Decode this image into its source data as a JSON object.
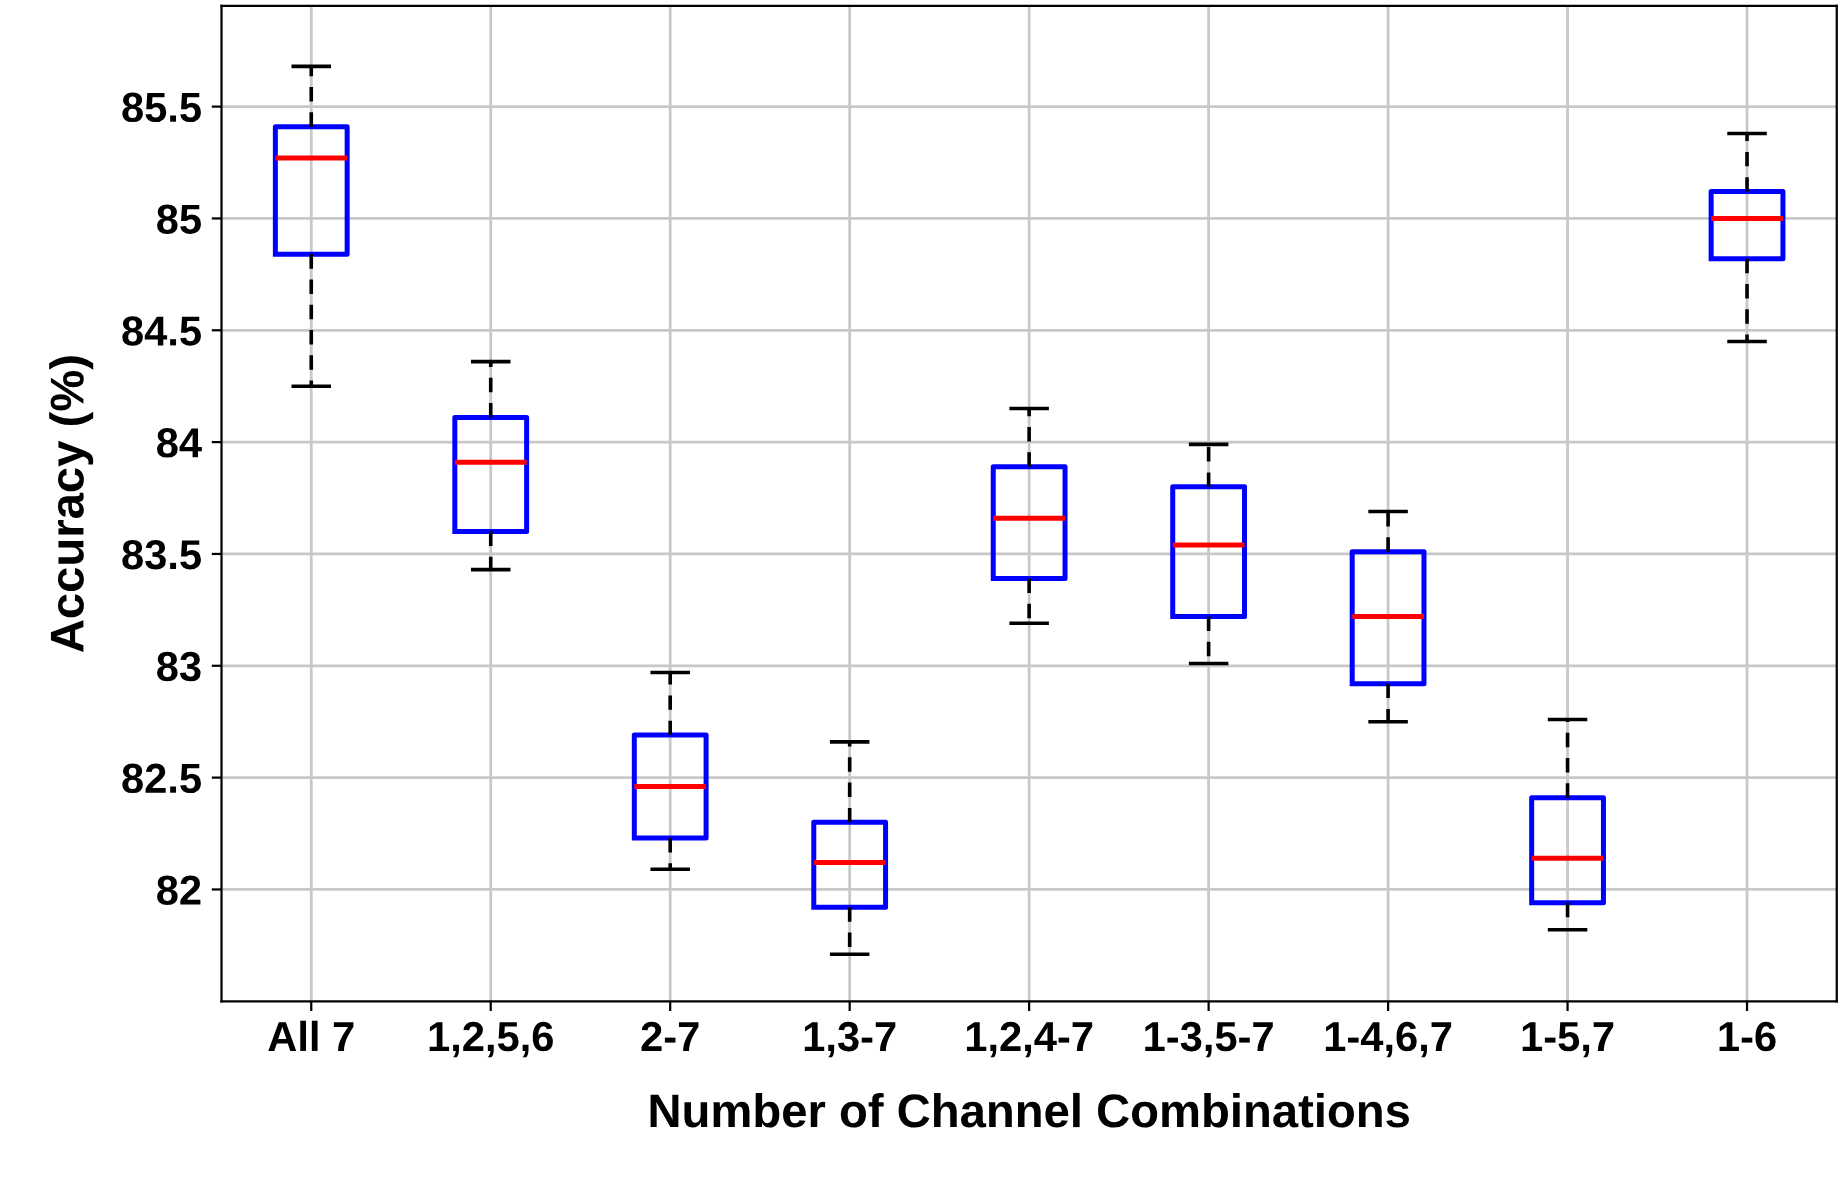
{
  "chart_data": {
    "type": "box",
    "xlabel": "Number of Channel Combinations",
    "ylabel": "Accuracy (%)",
    "categories": [
      "All 7",
      "1,2,5,6",
      "2-7",
      "1,3-7",
      "1,2,4-7",
      "1-3,5-7",
      "1-4,6,7",
      "1-5,7",
      "1-6"
    ],
    "boxes": [
      {
        "low": 84.25,
        "q1": 84.84,
        "median": 85.27,
        "q3": 85.41,
        "high": 85.68
      },
      {
        "low": 83.43,
        "q1": 83.6,
        "median": 83.91,
        "q3": 84.11,
        "high": 84.36
      },
      {
        "low": 82.09,
        "q1": 82.23,
        "median": 82.46,
        "q3": 82.69,
        "high": 82.97
      },
      {
        "low": 81.71,
        "q1": 81.92,
        "median": 82.12,
        "q3": 82.3,
        "high": 82.66
      },
      {
        "low": 83.19,
        "q1": 83.39,
        "median": 83.66,
        "q3": 83.89,
        "high": 84.15
      },
      {
        "low": 83.01,
        "q1": 83.22,
        "median": 83.54,
        "q3": 83.8,
        "high": 83.99
      },
      {
        "low": 82.75,
        "q1": 82.92,
        "median": 83.22,
        "q3": 83.51,
        "high": 83.69
      },
      {
        "low": 81.82,
        "q1": 81.94,
        "median": 82.14,
        "q3": 82.41,
        "high": 82.76
      },
      {
        "low": 84.45,
        "q1": 84.82,
        "median": 85.0,
        "q3": 85.12,
        "high": 85.38
      }
    ],
    "color": "#0000ff",
    "ylim": [
      81.5,
      85.95
    ],
    "yticks": [
      82,
      82.5,
      83,
      83.5,
      84,
      84.5,
      85,
      85.5
    ],
    "grid": true
  }
}
